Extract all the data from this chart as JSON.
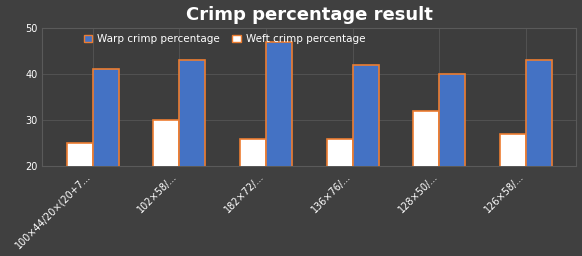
{
  "title": "Crimp percentage result",
  "categories": [
    "100×44/20×(20+7...",
    "102×58/...",
    "182×72/...",
    "136×76/...",
    "128×50/...",
    "126×58/..."
  ],
  "warp_values": [
    25,
    30,
    26,
    26,
    32,
    27
  ],
  "weft_values": [
    41,
    43,
    47,
    42,
    40,
    43
  ],
  "warp_color": "#ffffff",
  "weft_color_bar": "#4472C4",
  "edge_color": "#ED7D31",
  "warp_label": "Warp crimp percentage",
  "weft_label": "Weft crimp percentage",
  "legend_warp_color": "#4472C4",
  "legend_weft_color": "#ffffff",
  "ylim": [
    20,
    50
  ],
  "yticks": [
    20,
    30,
    40,
    50
  ],
  "background_color": "#404040",
  "plot_bg_color": "#3d3d3d",
  "grid_color": "#5a5a5a",
  "text_color": "#ffffff",
  "title_fontsize": 13,
  "tick_fontsize": 7,
  "legend_fontsize": 7.5,
  "bar_width": 0.3
}
